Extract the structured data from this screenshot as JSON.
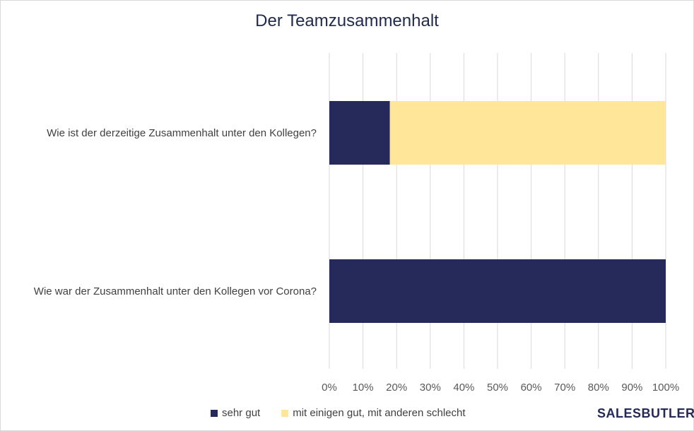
{
  "chart_data": {
    "type": "bar",
    "orientation": "horizontal",
    "stacked": "100%",
    "title": "Der Teamzusammenhalt",
    "categories": [
      "Wie ist der derzeitige Zusammenhalt unter den Kollegen?",
      "Wie war der Zusammenhalt unter den Kollegen vor Corona?"
    ],
    "series": [
      {
        "name": "sehr gut",
        "color": "#252a5a",
        "values": [
          18,
          100
        ]
      },
      {
        "name": "mit einigen gut, mit anderen schlecht",
        "color": "#ffe699",
        "values": [
          82,
          0
        ]
      }
    ],
    "xlim": [
      0,
      100
    ],
    "xticks": [
      "0%",
      "10%",
      "20%",
      "30%",
      "40%",
      "50%",
      "60%",
      "70%",
      "80%",
      "90%",
      "100%"
    ],
    "grid": true,
    "legend_position": "bottom"
  },
  "logo_text": "SALESBUTLERS"
}
